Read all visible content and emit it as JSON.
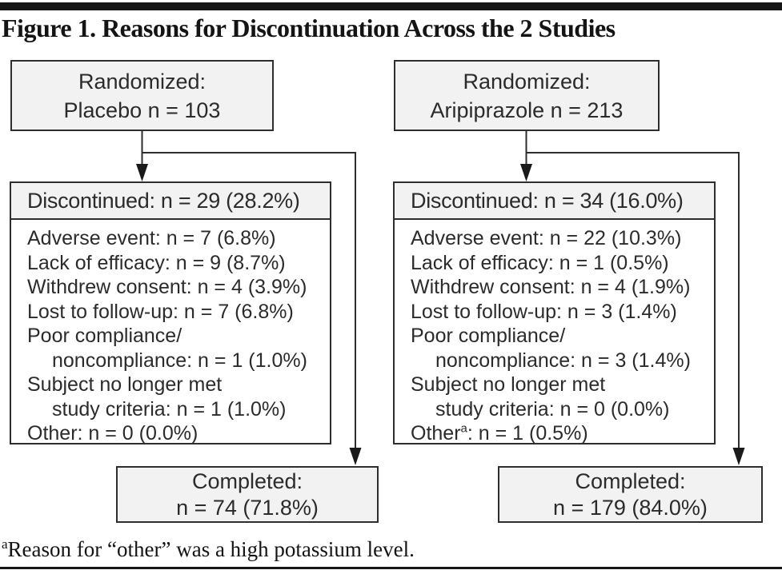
{
  "figure": {
    "title": "Figure 1. Reasons for Discontinuation Across the 2 Studies",
    "footnote": {
      "sup": "a",
      "text": "Reason for “other” was a high potassium level."
    }
  },
  "colors": {
    "box_fill": "#f2f2f2",
    "border": "#2e2e2e",
    "rule": "#161616",
    "text": "#2b2b2b"
  },
  "arms": [
    {
      "name": "placebo",
      "randomized": {
        "line1": "Randomized:",
        "line2": "Placebo n = 103"
      },
      "discontinued": {
        "header": "Discontinued: n = 29 (28.2%)",
        "reasons": [
          {
            "pre": "Adverse event: n = 7 (6.8%)"
          },
          {
            "pre": "Lack of efficacy: n = 9 (8.7%)"
          },
          {
            "pre": "Withdrew consent: n = 4 (3.9%)"
          },
          {
            "pre": "Lost to follow-up: n = 7 (6.8%)"
          },
          {
            "pre": "Poor compliance/"
          },
          {
            "pre": "noncompliance: n = 1 (1.0%)",
            "indent": true
          },
          {
            "pre": "Subject no longer met"
          },
          {
            "pre": "study criteria: n = 1 (1.0%)",
            "indent": true
          },
          {
            "pre": "Other: n = 0 (0.0%)"
          }
        ]
      },
      "completed": {
        "line1": "Completed:",
        "line2": "n = 74 (71.8%)"
      }
    },
    {
      "name": "aripiprazole",
      "randomized": {
        "line1": "Randomized:",
        "line2": "Aripiprazole n = 213"
      },
      "discontinued": {
        "header": "Discontinued: n = 34 (16.0%)",
        "reasons": [
          {
            "pre": "Adverse event: n = 22 (10.3%)"
          },
          {
            "pre": "Lack of efficacy: n = 1 (0.5%)"
          },
          {
            "pre": "Withdrew consent: n = 4 (1.9%)"
          },
          {
            "pre": "Lost to follow-up: n = 3 (1.4%)"
          },
          {
            "pre": "Poor compliance/"
          },
          {
            "pre": "noncompliance: n = 3 (1.4%)",
            "indent": true
          },
          {
            "pre": "Subject no longer met"
          },
          {
            "pre": "study criteria: n = 0 (0.0%)",
            "indent": true
          },
          {
            "pre": "Other",
            "sup": "a",
            "post": ": n = 1 (0.5%)"
          }
        ]
      },
      "completed": {
        "line1": "Completed:",
        "line2": "n = 179 (84.0%)"
      }
    }
  ]
}
